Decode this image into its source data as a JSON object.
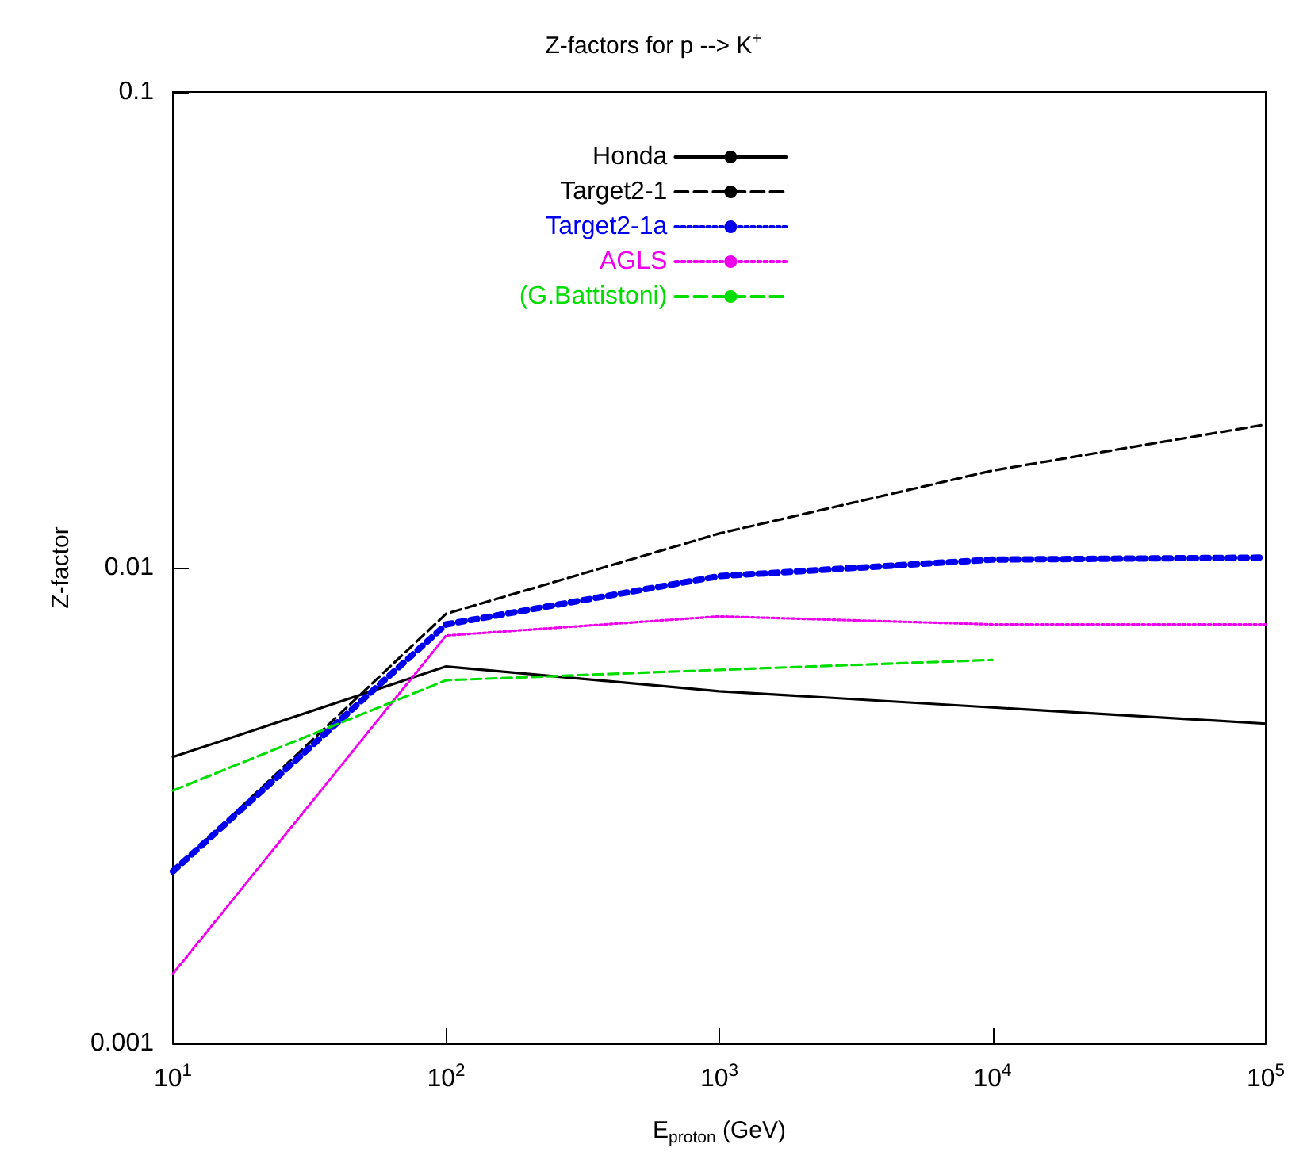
{
  "chart_data": {
    "type": "line",
    "title": "Z-factors for p --> K$^{+}$",
    "xlabel": "E$_{proton}$ (GeV)",
    "ylabel": "Z-factor",
    "log": "xy",
    "grid": false,
    "legend": "top",
    "marker": "none",
    "xlim": [
      10,
      100000
    ],
    "xticks": [
      {
        "value": 10,
        "label": "10$^{1}$"
      },
      {
        "value": 100,
        "label": "10$^{2}$"
      },
      {
        "value": 1000,
        "label": "10$^{3}$"
      },
      {
        "value": 10000,
        "label": "10$^{4}$"
      },
      {
        "value": 100000,
        "label": "10$^{5}$"
      }
    ],
    "ylim": [
      0.001,
      0.1
    ],
    "yticks": [
      0.001,
      0.01,
      0.1
    ],
    "series": [
      {
        "name": "Honda",
        "color": "#000000",
        "line_style": "solid",
        "x": [
          10,
          100,
          1000,
          100000
        ],
        "values": [
          0.004,
          0.0062,
          0.0055,
          0.0047
        ]
      },
      {
        "name": "Target2-1",
        "color": "#000000",
        "line_style": "dashed",
        "x": [
          10,
          100,
          1000,
          10000,
          100000
        ],
        "values": [
          0.0023,
          0.008,
          0.0118,
          0.016,
          0.02
        ]
      },
      {
        "name": "Target2-1a",
        "color": "#0000ee",
        "line_style": "dotted",
        "x": [
          10,
          100,
          1000,
          10000,
          100000
        ],
        "values": [
          0.0023,
          0.0076,
          0.0096,
          0.0104,
          0.0105
        ]
      },
      {
        "name": "AGLS",
        "color": "#ee00ee",
        "line_style": "dotted",
        "x": [
          10,
          100,
          1000,
          10000,
          100000
        ],
        "values": [
          0.0014,
          0.0072,
          0.0079,
          0.0076,
          0.0076
        ]
      },
      {
        "name": "(G.Battistoni)",
        "color": "#00dd00",
        "line_style": "dashed",
        "x": [
          10,
          100,
          1000,
          10000
        ],
        "values": [
          0.0034,
          0.0058,
          0.0061,
          0.0064
        ]
      }
    ]
  }
}
